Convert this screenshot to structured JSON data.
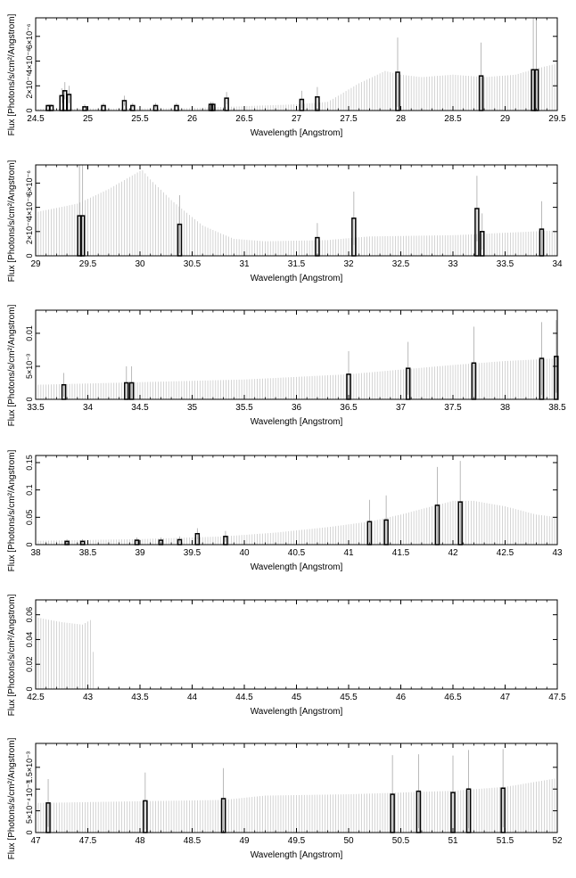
{
  "chart_data": [
    {
      "type": "bar",
      "xlabel": "Wavelength [Angstrom]",
      "ylabel": "Flux [Photons/s/cm²/Angstrom]",
      "xlim": [
        24.5,
        29.5
      ],
      "ylim": [
        0,
        7.5e-06
      ],
      "xticks": [
        "24.5",
        "25",
        "25.5",
        "26",
        "26.5",
        "27",
        "27.5",
        "28",
        "28.5",
        "29",
        "29.5"
      ],
      "yticks": [
        {
          "v": 0,
          "label": "0"
        },
        {
          "v": 2e-06,
          "label": "2×10⁻⁶"
        },
        {
          "v": 4e-06,
          "label": "4×10⁻⁶"
        },
        {
          "v": 6e-06,
          "label": "6×10⁻⁶"
        }
      ],
      "model_band": {
        "step": 0.025,
        "knots": [
          [
            24.5,
            1.5e-07
          ],
          [
            26,
            2e-07
          ],
          [
            27,
            5e-07
          ],
          [
            27.3,
            7e-07
          ],
          [
            27.6,
            2.2e-06
          ],
          [
            27.85,
            3.2e-06
          ],
          [
            28.0,
            2.9e-06
          ],
          [
            28.2,
            2.7e-06
          ],
          [
            28.5,
            2.9e-06
          ],
          [
            28.8,
            2.7e-06
          ],
          [
            29.1,
            2.9e-06
          ],
          [
            29.3,
            3.4e-06
          ],
          [
            29.5,
            3.8e-06
          ]
        ]
      },
      "points": [
        {
          "x": 24.62,
          "y": 4e-07,
          "err": 1e-07
        },
        {
          "x": 24.65,
          "y": 4e-07,
          "err": 1e-07
        },
        {
          "x": 24.75,
          "y": 1.2e-06,
          "err": 6e-07
        },
        {
          "x": 24.78,
          "y": 1.6e-06,
          "err": 7e-07
        },
        {
          "x": 24.82,
          "y": 1.3e-06,
          "err": 7e-07
        },
        {
          "x": 24.97,
          "y": 3e-07,
          "err": 2e-07
        },
        {
          "x": 25.15,
          "y": 4e-07,
          "err": 2e-07
        },
        {
          "x": 25.35,
          "y": 8e-07,
          "err": 4e-07
        },
        {
          "x": 25.43,
          "y": 4e-07,
          "err": 2e-07
        },
        {
          "x": 25.65,
          "y": 4e-07,
          "err": 2e-07
        },
        {
          "x": 25.85,
          "y": 4e-07,
          "err": 2e-07
        },
        {
          "x": 26.18,
          "y": 5e-07,
          "err": 2e-07
        },
        {
          "x": 26.2,
          "y": 5e-07,
          "err": 2e-07
        },
        {
          "x": 26.33,
          "y": 1e-06,
          "err": 5e-07
        },
        {
          "x": 27.05,
          "y": 9e-07,
          "err": 7e-07
        },
        {
          "x": 27.2,
          "y": 1.1e-06,
          "err": 8e-07
        },
        {
          "x": 27.97,
          "y": 3.1e-06,
          "err": 2.8e-06
        },
        {
          "x": 28.77,
          "y": 2.8e-06,
          "err": 2.7e-06
        },
        {
          "x": 29.27,
          "y": 3.3e-06,
          "err": 4.2e-06
        },
        {
          "x": 29.3,
          "y": 3.3e-06,
          "err": 4.2e-06
        }
      ]
    },
    {
      "type": "bar",
      "xlabel": "Wavelength [Angstrom]",
      "ylabel": "Flux [Photons/s/cm²/Angstrom]",
      "xlim": [
        29,
        34
      ],
      "ylim": [
        0,
        7.5e-06
      ],
      "xticks": [
        "29",
        "29.5",
        "30",
        "30.5",
        "31",
        "31.5",
        "32",
        "32.5",
        "33",
        "33.5",
        "34"
      ],
      "yticks": [
        {
          "v": 0,
          "label": "0"
        },
        {
          "v": 2e-06,
          "label": "2×10⁻⁶"
        },
        {
          "v": 4e-06,
          "label": "4×10⁻⁶"
        },
        {
          "v": 6e-06,
          "label": "6×10⁻⁶"
        }
      ],
      "model_band": {
        "step": 0.025,
        "knots": [
          [
            29,
            3.6e-06
          ],
          [
            29.4,
            4.3e-06
          ],
          [
            29.7,
            5.5e-06
          ],
          [
            29.9,
            6.5e-06
          ],
          [
            30.02,
            7.1e-06
          ],
          [
            30.1,
            6.3e-06
          ],
          [
            30.3,
            4.6e-06
          ],
          [
            30.6,
            2.5e-06
          ],
          [
            30.9,
            1.4e-06
          ],
          [
            31.2,
            1.2e-06
          ],
          [
            31.8,
            1.3e-06
          ],
          [
            32.2,
            1.6e-06
          ],
          [
            33,
            1.7e-06
          ],
          [
            34,
            2.1e-06
          ]
        ]
      },
      "points": [
        {
          "x": 29.42,
          "y": 3.3e-06,
          "err": 4.2e-06
        },
        {
          "x": 29.45,
          "y": 3.3e-06,
          "err": 4.2e-06
        },
        {
          "x": 30.38,
          "y": 2.6e-06,
          "err": 2.4e-06
        },
        {
          "x": 31.7,
          "y": 1.5e-06,
          "err": 1.2e-06
        },
        {
          "x": 32.05,
          "y": 3.1e-06,
          "err": 2.2e-06
        },
        {
          "x": 33.23,
          "y": 3.9e-06,
          "err": 2.7e-06
        },
        {
          "x": 33.28,
          "y": 2e-06,
          "err": 1.5e-06
        },
        {
          "x": 33.85,
          "y": 2.2e-06,
          "err": 2.3e-06
        }
      ]
    },
    {
      "type": "bar",
      "xlabel": "Wavelength [Angstrom]",
      "ylabel": "Flux [Photons/s/cm²/Angstrom]",
      "xlim": [
        33.5,
        38.5
      ],
      "ylim": [
        0,
        0.0135
      ],
      "xticks": [
        "33.5",
        "34",
        "34.5",
        "35",
        "35.5",
        "36",
        "36.5",
        "37",
        "37.5",
        "38",
        "38.5"
      ],
      "yticks": [
        {
          "v": 0,
          "label": "0"
        },
        {
          "v": 0.005,
          "label": "5×10⁻³"
        },
        {
          "v": 0.01,
          "label": "0.01"
        }
      ],
      "model_band": {
        "step": 0.025,
        "knots": [
          [
            33.5,
            0.0022
          ],
          [
            34.5,
            0.0026
          ],
          [
            35.5,
            0.003
          ],
          [
            36.5,
            0.0038
          ],
          [
            37,
            0.0045
          ],
          [
            37.5,
            0.0052
          ],
          [
            38,
            0.0058
          ],
          [
            38.5,
            0.0062
          ]
        ]
      },
      "points": [
        {
          "x": 33.77,
          "y": 0.0022,
          "err": 0.0018
        },
        {
          "x": 34.37,
          "y": 0.0025,
          "err": 0.0025
        },
        {
          "x": 34.42,
          "y": 0.0025,
          "err": 0.0025
        },
        {
          "x": 36.5,
          "y": 0.0038,
          "err": 0.0035
        },
        {
          "x": 37.07,
          "y": 0.0047,
          "err": 0.004
        },
        {
          "x": 37.7,
          "y": 0.0055,
          "err": 0.0055
        },
        {
          "x": 38.35,
          "y": 0.0062,
          "err": 0.0055
        },
        {
          "x": 38.49,
          "y": 0.0065,
          "err": 0.0055
        }
      ]
    },
    {
      "type": "bar",
      "xlabel": "Wavelength [Angstrom]",
      "ylabel": "Flux [Photons/s/cm²/Angstrom]",
      "xlim": [
        38,
        43
      ],
      "ylim": [
        0,
        0.163
      ],
      "xticks": [
        "38",
        "38.5",
        "39",
        "39.5",
        "40",
        "40.5",
        "41",
        "41.5",
        "42",
        "42.5",
        "43"
      ],
      "yticks": [
        {
          "v": 0,
          "label": "0"
        },
        {
          "v": 0.05,
          "label": "0.05"
        },
        {
          "v": 0.1,
          "label": "0.1"
        },
        {
          "v": 0.15,
          "label": "0.15"
        }
      ],
      "model_band": {
        "step": 0.025,
        "knots": [
          [
            38,
            0.007
          ],
          [
            39,
            0.01
          ],
          [
            39.8,
            0.015
          ],
          [
            40.3,
            0.022
          ],
          [
            40.8,
            0.032
          ],
          [
            41.2,
            0.042
          ],
          [
            41.5,
            0.055
          ],
          [
            41.8,
            0.07
          ],
          [
            42,
            0.08
          ],
          [
            42.2,
            0.08
          ],
          [
            42.5,
            0.07
          ],
          [
            42.8,
            0.055
          ],
          [
            43,
            0.05
          ]
        ]
      },
      "points": [
        {
          "x": 38.3,
          "y": 0.006,
          "err": 0.004
        },
        {
          "x": 38.45,
          "y": 0.006,
          "err": 0.004
        },
        {
          "x": 38.97,
          "y": 0.008,
          "err": 0.005
        },
        {
          "x": 39.2,
          "y": 0.008,
          "err": 0.005
        },
        {
          "x": 39.38,
          "y": 0.009,
          "err": 0.006
        },
        {
          "x": 39.55,
          "y": 0.02,
          "err": 0.01
        },
        {
          "x": 39.82,
          "y": 0.015,
          "err": 0.01
        },
        {
          "x": 41.2,
          "y": 0.042,
          "err": 0.04
        },
        {
          "x": 41.36,
          "y": 0.045,
          "err": 0.045
        },
        {
          "x": 41.85,
          "y": 0.072,
          "err": 0.07
        },
        {
          "x": 42.07,
          "y": 0.078,
          "err": 0.075
        }
      ]
    },
    {
      "type": "bar",
      "xlabel": "Wavelength [Angstrom]",
      "ylabel": "Flux [Photons/s/cm²/Angstrom]",
      "xlim": [
        42.5,
        47.5
      ],
      "ylim": [
        0,
        0.072
      ],
      "xticks": [
        "42.5",
        "43",
        "43.5",
        "44",
        "44.5",
        "45",
        "45.5",
        "46",
        "46.5",
        "47",
        "47.5"
      ],
      "yticks": [
        {
          "v": 0,
          "label": "0"
        },
        {
          "v": 0.02,
          "label": "0.02"
        },
        {
          "v": 0.04,
          "label": "0.04"
        },
        {
          "v": 0.06,
          "label": "0.06"
        }
      ],
      "model_band": {
        "step": 0.025,
        "knots": [
          [
            42.5,
            0.058
          ],
          [
            42.75,
            0.054
          ],
          [
            42.95,
            0.052
          ],
          [
            43.03,
            0.056
          ],
          [
            43.05,
            0.03
          ],
          [
            43.07,
            0.0002
          ],
          [
            47.5,
            0.0002
          ]
        ]
      },
      "points": []
    },
    {
      "type": "bar",
      "xlabel": "Wavelength [Angstrom]",
      "ylabel": "Flux [Photons/s/cm²/Angstrom]",
      "xlim": [
        47,
        52
      ],
      "ylim": [
        0,
        0.00205
      ],
      "xticks": [
        "47",
        "47.5",
        "48",
        "48.5",
        "49",
        "49.5",
        "50",
        "50.5",
        "51",
        "51.5",
        "52"
      ],
      "yticks": [
        {
          "v": 0,
          "label": "0"
        },
        {
          "v": 0.0005,
          "label": "5×10⁻⁴"
        },
        {
          "v": 0.001,
          "label": "10⁻³"
        },
        {
          "v": 0.0015,
          "label": "1.5×10⁻³"
        }
      ],
      "model_band": {
        "step": 0.025,
        "knots": [
          [
            47,
            0.00068
          ],
          [
            48,
            0.00072
          ],
          [
            48.8,
            0.00075
          ],
          [
            49.2,
            0.00085
          ],
          [
            50,
            0.00088
          ],
          [
            50.5,
            0.00092
          ],
          [
            51,
            0.00096
          ],
          [
            51.5,
            0.00105
          ],
          [
            52,
            0.00125
          ]
        ]
      },
      "points": [
        {
          "x": 47.12,
          "y": 0.00068,
          "err": 0.00055
        },
        {
          "x": 48.05,
          "y": 0.00073,
          "err": 0.00065
        },
        {
          "x": 48.8,
          "y": 0.00078,
          "err": 0.0007
        },
        {
          "x": 50.42,
          "y": 0.00088,
          "err": 0.0009
        },
        {
          "x": 50.67,
          "y": 0.00095,
          "err": 0.00085
        },
        {
          "x": 51.0,
          "y": 0.00092,
          "err": 0.00085
        },
        {
          "x": 51.15,
          "y": 0.001,
          "err": 0.0009
        },
        {
          "x": 51.48,
          "y": 0.00102,
          "err": 0.0009
        }
      ]
    }
  ]
}
